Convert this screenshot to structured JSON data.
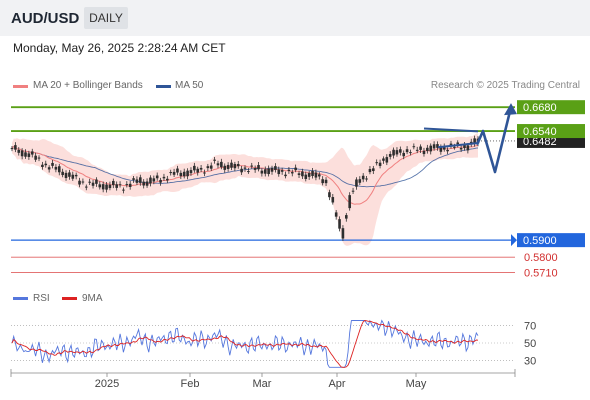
{
  "header": {
    "symbol": "AUD/USD",
    "period": "DAILY"
  },
  "datetime": "Monday, May 26, 2025 2:28:24 AM CET",
  "legend": {
    "ma20": "MA 20 + Bollinger Bands",
    "ma50": "MA 50",
    "rsi": "RSI",
    "nine_ma": "9MA"
  },
  "copyright": "Research © 2025 Trading Central",
  "colors": {
    "ma20": "#f08080",
    "ma50": "#2f5597",
    "bollinger_fill": "#fcd9d6",
    "candle": "#2e2e2e",
    "resistance": "#5aa016",
    "support": "#2266dd",
    "target": "#e06060",
    "rsi": "#5577dd",
    "rsi_ma": "#dd2222",
    "arrow": "#2f5597"
  },
  "chart_data": [
    {
      "type": "candlestick",
      "ylim": [
        0.5672,
        0.6728
      ],
      "x_ticks": [
        "2025",
        "Feb",
        "Mar",
        "Apr",
        "May"
      ],
      "levels": [
        {
          "value": 0.668,
          "label": "0.6680",
          "kind": "resistance"
        },
        {
          "value": 0.654,
          "label": "0.6540",
          "kind": "resistance"
        },
        {
          "value": 0.59,
          "label": "0.5900",
          "kind": "support"
        },
        {
          "value": 0.58,
          "label": "0.5800",
          "kind": "target"
        },
        {
          "value": 0.571,
          "label": "0.5710",
          "kind": "target"
        }
      ],
      "last_price": {
        "value": 0.6482,
        "label": "0.6482"
      },
      "forecast_path": [
        0.646,
        0.654,
        0.63,
        0.668
      ],
      "series": [
        {
          "name": "MA 20 + Bollinger Bands",
          "kind": "ma20"
        },
        {
          "name": "MA 50",
          "kind": "ma50"
        }
      ]
    },
    {
      "type": "line",
      "ylim": [
        20,
        80
      ],
      "y_ticks": [
        70,
        50,
        30
      ],
      "series": [
        {
          "name": "RSI",
          "kind": "rsi"
        },
        {
          "name": "9MA",
          "kind": "rsi_ma"
        }
      ]
    }
  ]
}
